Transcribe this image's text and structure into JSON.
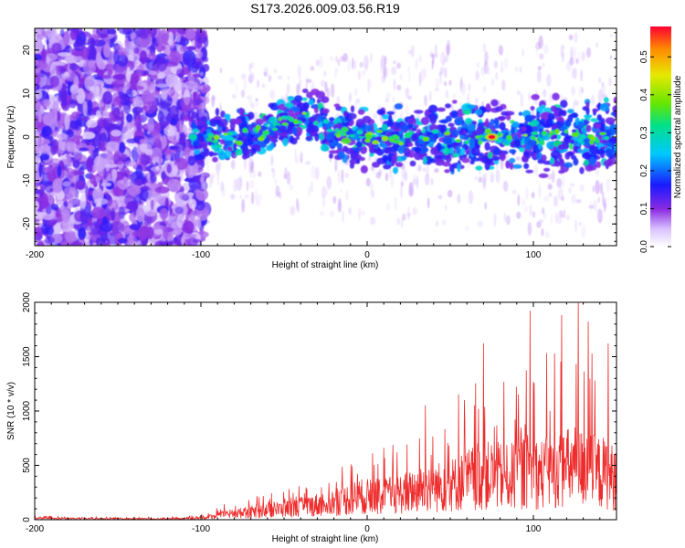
{
  "figure_title": "S173.2026.009.03.56.R19",
  "colors": {
    "snr_line": "#ee2c2c",
    "spectrogram_noise": "#7a00e0",
    "spectrogram_peak": "#ff0000"
  },
  "chart_data": [
    {
      "type": "heatmap",
      "title": "",
      "xlabel": "Height of straight line (km)",
      "ylabel": "Frequency (Hz)",
      "xlim": [
        -200,
        150
      ],
      "ylim": [
        -25,
        25
      ],
      "xticks": [
        -200,
        -100,
        0,
        100
      ],
      "xtick_labels": [
        "-200",
        "-100",
        "0",
        "100"
      ],
      "yticks": [
        -20,
        -10,
        0,
        10,
        20
      ],
      "ytick_labels": [
        "-20",
        "-10",
        "0",
        "10",
        "20"
      ],
      "colorbar": {
        "label": "Normalized spectral amplitude",
        "range": [
          0,
          0.58
        ],
        "ticks": [
          0,
          0.1,
          0.2,
          0.3,
          0.4,
          0.5
        ],
        "tick_labels": [
          "0.0",
          "0.1",
          "0.2",
          "0.3",
          "0.4",
          "0.5"
        ],
        "colormap": "rainbow (white-violet-blue-cyan-green-yellow-red)"
      },
      "features": {
        "noise_region_x": [
          -200,
          -105
        ],
        "signal_band_center_hz": 0,
        "signal_band_halfwidth_hz": 4,
        "bump": {
          "x_center": -40,
          "freq_offset_hz": 8
        },
        "peak": {
          "x": 75,
          "freq_hz": 0,
          "amplitude": 0.58
        }
      }
    },
    {
      "type": "line",
      "title": "",
      "xlabel": "Height of straight line (km)",
      "ylabel": "SNR (10 * v/v)",
      "xlim": [
        -200,
        150
      ],
      "ylim": [
        0,
        2000
      ],
      "xticks": [
        -200,
        -100,
        0,
        100
      ],
      "xtick_labels": [
        "-200",
        "-100",
        "0",
        "100"
      ],
      "yticks": [
        0,
        500,
        1000,
        1500,
        2000
      ],
      "ytick_labels": [
        "0",
        "500",
        "1000",
        "1500",
        "2000"
      ],
      "series": [
        {
          "name": "SNR",
          "x": [
            -200,
            -180,
            -160,
            -140,
            -120,
            -105,
            -95,
            -85,
            -75,
            -65,
            -55,
            -45,
            -35,
            -25,
            -15,
            -5,
            5,
            15,
            25,
            35,
            45,
            55,
            65,
            75,
            85,
            95,
            105,
            115,
            125,
            135,
            145,
            150
          ],
          "envelope_max": [
            40,
            35,
            30,
            30,
            30,
            40,
            80,
            170,
            230,
            250,
            280,
            330,
            390,
            430,
            580,
            820,
            700,
            760,
            830,
            1050,
            980,
            1150,
            1580,
            1620,
            1350,
            1920,
            1530,
            1880,
            2000,
            1820,
            1620,
            1300
          ],
          "typical": [
            15,
            15,
            12,
            12,
            12,
            15,
            35,
            70,
            90,
            110,
            130,
            150,
            180,
            210,
            250,
            300,
            300,
            320,
            360,
            420,
            430,
            480,
            560,
            580,
            550,
            650,
            600,
            650,
            700,
            640,
            600,
            520
          ],
          "notable_peaks": [
            {
              "x": 127,
              "y": 2000
            },
            {
              "x": 98,
              "y": 1920
            },
            {
              "x": 117,
              "y": 1880
            },
            {
              "x": 133,
              "y": 1820
            },
            {
              "x": 108,
              "y": 1530
            },
            {
              "x": 70,
              "y": 1620
            },
            {
              "x": 145,
              "y": 1620
            },
            {
              "x": 55,
              "y": 1150
            },
            {
              "x": 35,
              "y": 1050
            }
          ]
        }
      ]
    }
  ]
}
